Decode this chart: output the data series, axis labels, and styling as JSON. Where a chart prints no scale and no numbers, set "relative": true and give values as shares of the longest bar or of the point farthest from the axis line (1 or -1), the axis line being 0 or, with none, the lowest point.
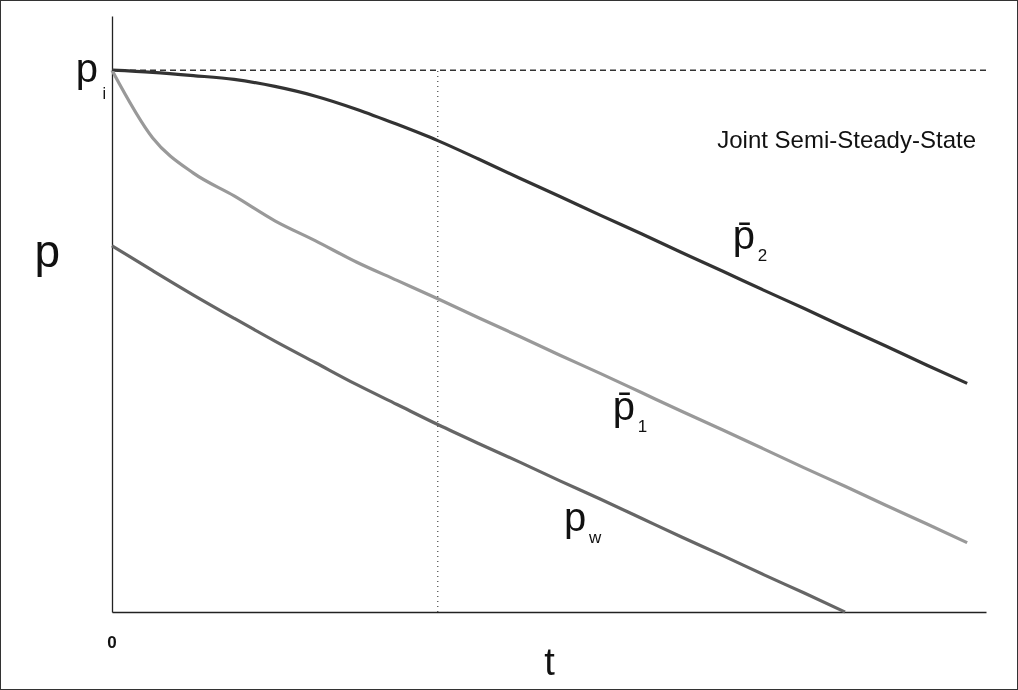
{
  "chart_data": {
    "type": "line",
    "relative": true,
    "xlabel": "t",
    "ylabel": "p",
    "grid": false,
    "marker": "none",
    "line_style": "solid",
    "categories": [
      null,
      null,
      null,
      null,
      null,
      null,
      null,
      null,
      null,
      null,
      null,
      null,
      null,
      null,
      null,
      null,
      null,
      null,
      null,
      null,
      null,
      null
    ],
    "annotations": [
      "Joint Semi-Steady-State",
      "0"
    ],
    "ref_lines": [
      {
        "axis": "y",
        "value": 1,
        "label": "p$_{i}$",
        "line_style": "dashed",
        "color": "#333333"
      }
    ],
    "series": [
      {
        "name": "p̄$_{2}$",
        "color": "#333333",
        "values": [
          1,
          0.996,
          0.99,
          0.983,
          0.97,
          0.952,
          0.928,
          0.9,
          0.87,
          0.836,
          0.801,
          0.767,
          0.732,
          0.698,
          0.663,
          0.629,
          0.594,
          0.56,
          0.525,
          0.491,
          0.456,
          0.422
        ]
      },
      {
        "name": "p̄$_{1}$",
        "color": "#999999",
        "values": [
          1,
          0.875,
          0.81,
          0.768,
          0.722,
          0.685,
          0.646,
          0.612,
          0.578,
          0.543,
          0.509,
          0.474,
          0.44,
          0.405,
          0.37,
          0.336,
          0.301,
          0.266,
          0.232,
          0.197,
          0.163,
          0.128
        ]
      },
      {
        "name": "p$_{w}$",
        "color": "#666666",
        "values": [
          0.676,
          0.63,
          0.585,
          0.542,
          0.5,
          0.46,
          0.42,
          0.383,
          0.346,
          0.311,
          0.277,
          0.242,
          0.208,
          0.173,
          0.138,
          0.104,
          0.069,
          0.035,
          0,
          null,
          null,
          null
        ]
      }
    ]
  }
}
